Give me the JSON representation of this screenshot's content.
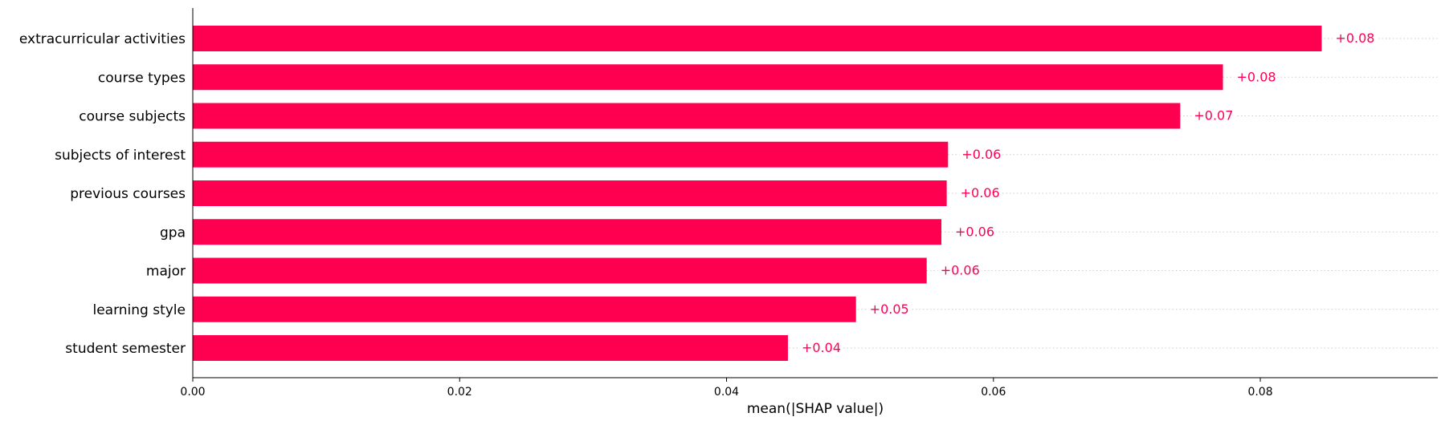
{
  "chart_data": {
    "type": "bar",
    "orientation": "horizontal",
    "categories": [
      "extracurricular activities",
      "course types",
      "course subjects",
      "subjects of interest",
      "previous courses",
      "gpa",
      "major",
      "learning style",
      "student semester"
    ],
    "values": [
      0.0846,
      0.0772,
      0.074,
      0.0566,
      0.0565,
      0.0561,
      0.055,
      0.0497,
      0.0446
    ],
    "value_labels": [
      "+0.08",
      "+0.08",
      "+0.07",
      "+0.06",
      "+0.06",
      "+0.06",
      "+0.06",
      "+0.05",
      "+0.04"
    ],
    "xlabel": "mean(|SHAP value|)",
    "ylabel": "",
    "title": "",
    "xlim": [
      0,
      0.0933
    ],
    "xticks": [
      0.0,
      0.02,
      0.04,
      0.06,
      0.08
    ],
    "xtick_labels": [
      "0.00",
      "0.02",
      "0.04",
      "0.06",
      "0.08"
    ],
    "grid": "dotted row guides",
    "legend": "none",
    "bar_color": "#ff0051"
  }
}
